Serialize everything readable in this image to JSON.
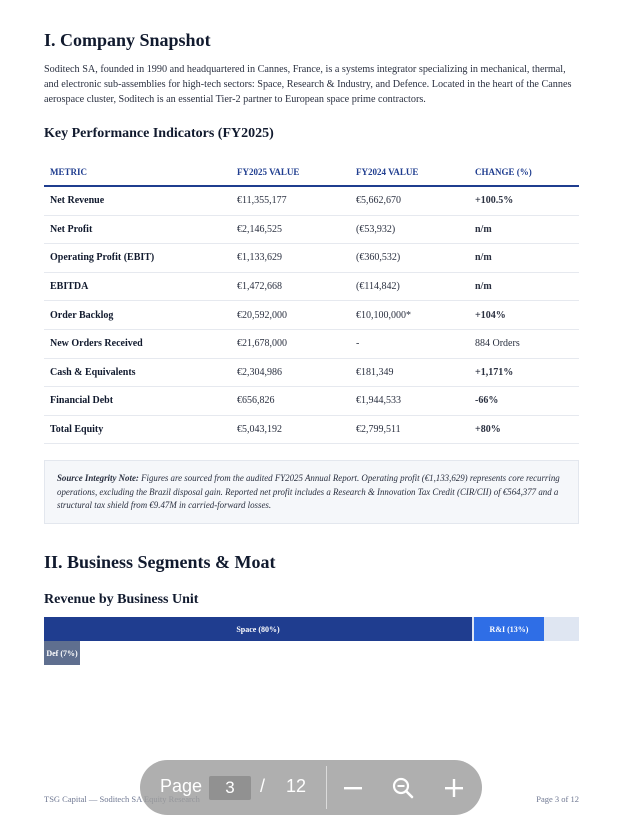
{
  "section1": {
    "heading": "I. Company Snapshot",
    "intro": "Soditech SA, founded in 1990 and headquartered in Cannes, France, is a systems integrator specializing in mechanical, thermal, and electronic sub-assemblies for high-tech sectors: Space, Research & Industry, and Defence. Located in the heart of the Cannes aerospace cluster, Soditech is an essential Tier-2 partner to European space prime contractors.",
    "kpi_heading": "Key Performance Indicators (FY2025)",
    "table": {
      "headers": [
        "METRIC",
        "FY2025 VALUE",
        "FY2024 VALUE",
        "CHANGE (%)"
      ],
      "rows": [
        [
          "Net Revenue",
          "€11,355,177",
          "€5,662,670",
          "+100.5%"
        ],
        [
          "Net Profit",
          "€2,146,525",
          "(€53,932)",
          "n/m"
        ],
        [
          "Operating Profit (EBIT)",
          "€1,133,629",
          "(€360,532)",
          "n/m"
        ],
        [
          "EBITDA",
          "€1,472,668",
          "(€114,842)",
          "n/m"
        ],
        [
          "Order Backlog",
          "€20,592,000",
          "€10,100,000*",
          "+104%"
        ],
        [
          "New Orders Received",
          "€21,678,000",
          "-",
          "884 Orders"
        ],
        [
          "Cash & Equivalents",
          "€2,304,986",
          "€181,349",
          "+1,171%"
        ],
        [
          "Financial Debt",
          "€656,826",
          "€1,944,533",
          "-66%"
        ],
        [
          "Total Equity",
          "€5,043,192",
          "€2,799,511",
          "+80%"
        ]
      ]
    },
    "note_label": "Source Integrity Note:",
    "note_text": " Figures are sourced from the audited FY2025 Annual Report. Operating profit (€1,133,629) represents core recurring operations, excluding the Brazil disposal gain. Reported net profit includes a Research & Innovation Tax Credit (CIR/CII) of €564,377 and a structural tax shield from €9.47M in carried-forward losses."
  },
  "section2": {
    "heading": "II. Business Segments & Moat",
    "rev_heading": "Revenue by Business Unit",
    "segments": [
      {
        "label": "Space (80%)",
        "share": 0.8,
        "color": "#1f3d8f"
      },
      {
        "label": "R&I (13%)",
        "share": 0.13,
        "color": "#2f6ee6"
      },
      {
        "label": "Def (7%)",
        "share": 0.07,
        "color": "#5f6f8f"
      }
    ]
  },
  "footer": {
    "left": "TSG Capital — Soditech SA Equity Research",
    "right": "Page 3 of 12"
  },
  "viewer": {
    "page_label": "Page",
    "current_page": "3",
    "separator": "/",
    "total_pages": "12"
  }
}
